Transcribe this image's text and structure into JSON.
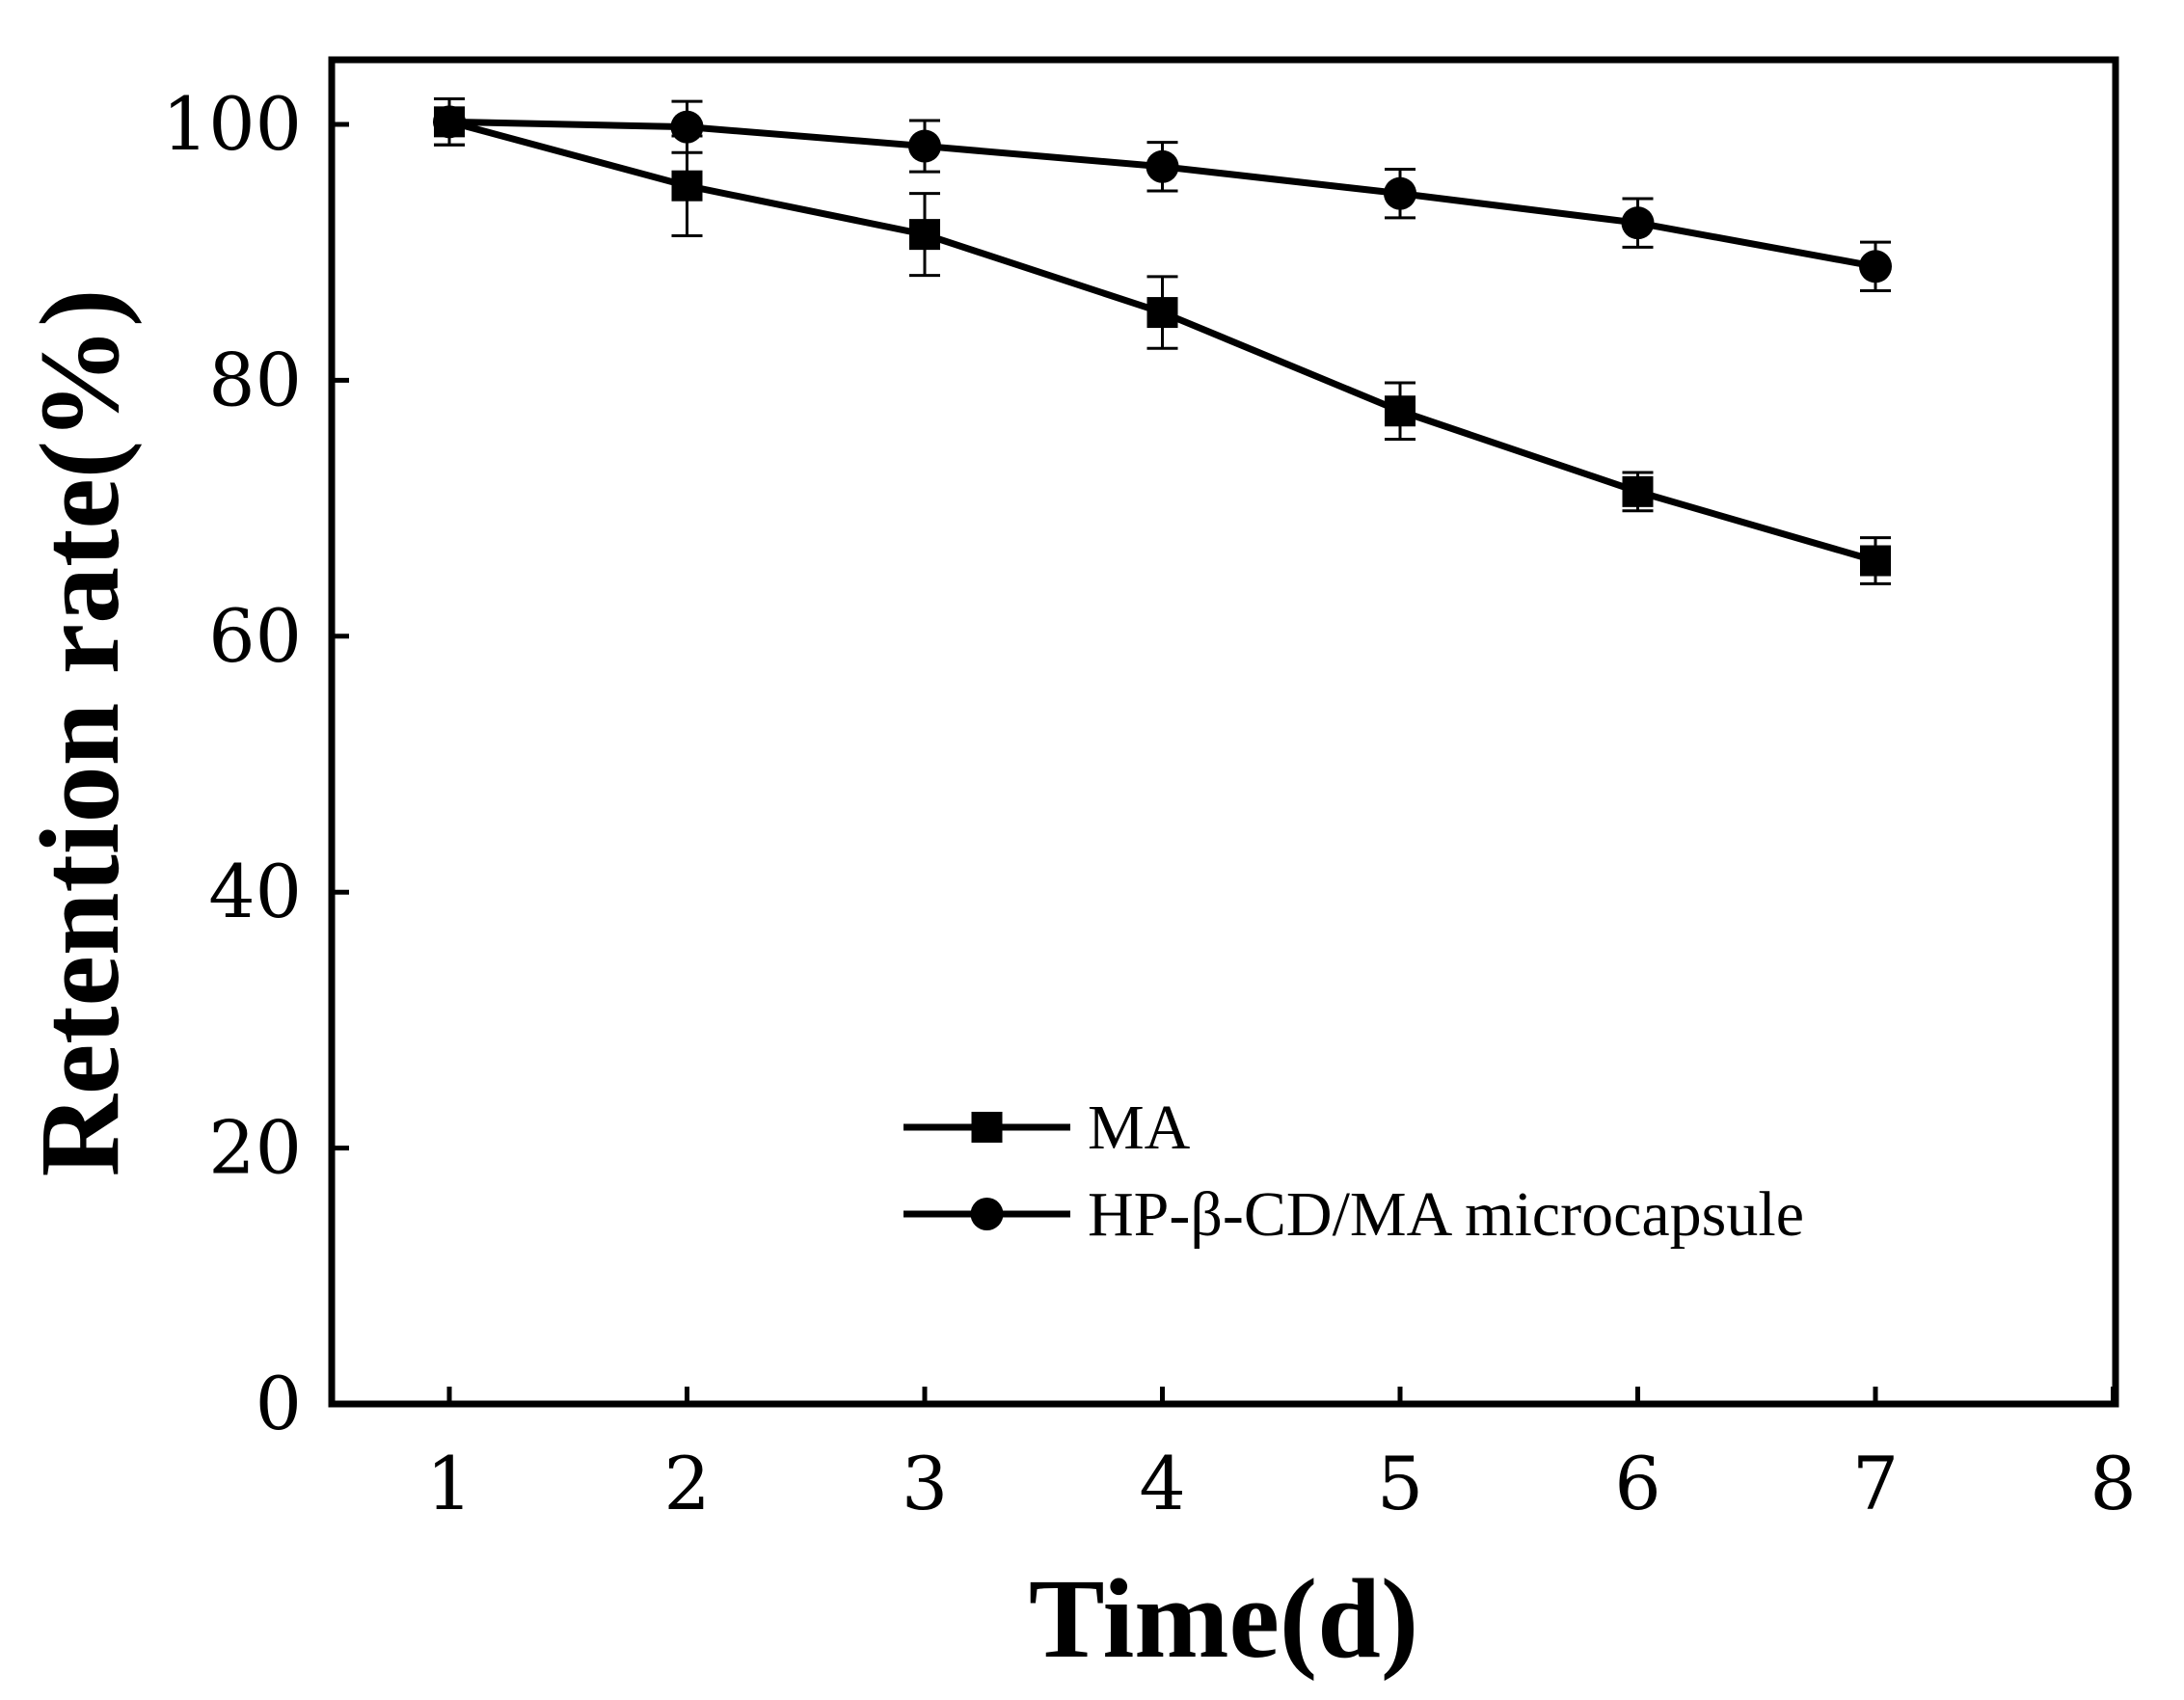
{
  "chart_data": {
    "type": "line",
    "title": "",
    "xlabel": "Time(d)",
    "ylabel": "Retention rate(%)",
    "xlim": [
      0.5,
      8
    ],
    "ylim": [
      0,
      105
    ],
    "xticks": [
      1,
      2,
      3,
      4,
      5,
      6,
      7,
      8
    ],
    "yticks": [
      0,
      20,
      40,
      60,
      80,
      100
    ],
    "grid": false,
    "legend_position": "lower-center",
    "x": [
      1,
      2,
      3,
      4,
      5,
      6,
      7
    ],
    "series": [
      {
        "name": "MA",
        "marker": "square",
        "values": [
          100.2,
          95.2,
          91.4,
          85.3,
          77.6,
          71.3,
          65.9
        ],
        "errors": [
          1.8,
          3.9,
          3.2,
          2.8,
          2.2,
          1.5,
          1.8
        ]
      },
      {
        "name": "HP-β-CD/MA microcapsule",
        "marker": "circle",
        "values": [
          100.2,
          99.8,
          98.3,
          96.7,
          94.6,
          92.3,
          88.9
        ],
        "errors": [
          1.8,
          2.0,
          2.0,
          1.9,
          1.9,
          1.9,
          1.9
        ]
      }
    ]
  },
  "colors": {
    "line": "#000000",
    "background": "#ffffff"
  }
}
